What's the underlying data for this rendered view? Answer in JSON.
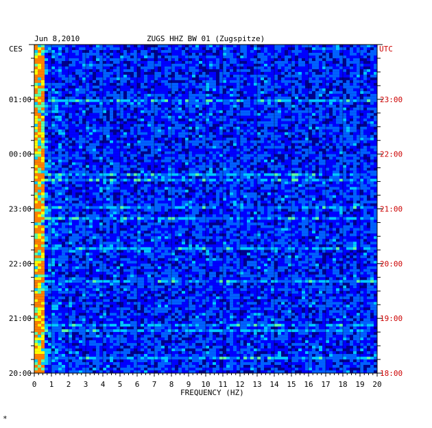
{
  "header": {
    "date": "Jun 8,2010",
    "station": "ZUGS HHZ BW 01 (Zugspitze)",
    "left_tz": "CES",
    "right_tz": "UTC",
    "corner_mark": "*"
  },
  "chart_data": {
    "type": "heatmap",
    "title": "ZUGS HHZ BW 01 (Zugspitze)",
    "xlabel": "FREQUENCY (HZ)",
    "xlim": [
      0,
      20
    ],
    "x_ticks": [
      "0",
      "1",
      "2",
      "3",
      "4",
      "5",
      "6",
      "7",
      "8",
      "9",
      "10",
      "11",
      "12",
      "13",
      "14",
      "15",
      "16",
      "17",
      "18",
      "19",
      "20"
    ],
    "left_time_labels": [
      "01:00",
      "00:00",
      "23:00",
      "22:00",
      "21:00",
      "20:00"
    ],
    "right_time_labels": [
      "23:00",
      "22:00",
      "21:00",
      "20:00",
      "19:00",
      "18:00"
    ],
    "hours_shown": 6,
    "grid": true,
    "colormap": [
      "#00008b",
      "#0000ff",
      "#0060ff",
      "#00c8ff",
      "#60ffa0",
      "#ffff00",
      "#ff8000"
    ],
    "colors": {
      "axis": "#000000",
      "utc_labels": "#cc0000",
      "grid": "#000000"
    }
  }
}
